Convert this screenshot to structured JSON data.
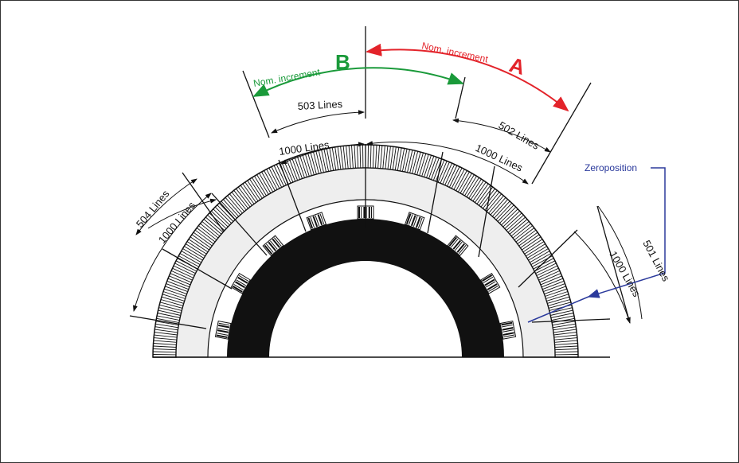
{
  "diagram": {
    "labels": {
      "nom_increment_b": "Nom. increment",
      "letter_b": "B",
      "nom_increment_a": "Nom. increment",
      "letter_a": "A",
      "lines_503": "503 Lines",
      "lines_502": "502 Lines",
      "lines_1000_top_left": "1000 Lines",
      "lines_1000_top_right": "1000 Lines",
      "lines_504": "504 Lines",
      "lines_1000_left": "1000 Lines",
      "lines_501": "501 Lines",
      "lines_1000_right": "1000 Lines",
      "zeroposition": "Zeroposition"
    },
    "colors": {
      "increment_b": "#1a9a3a",
      "increment_a": "#e3232a",
      "zeroposition": "#2b3a9c",
      "ink": "#111111",
      "track_fill": "#eeeeee"
    },
    "reference_mark_count": 9
  }
}
